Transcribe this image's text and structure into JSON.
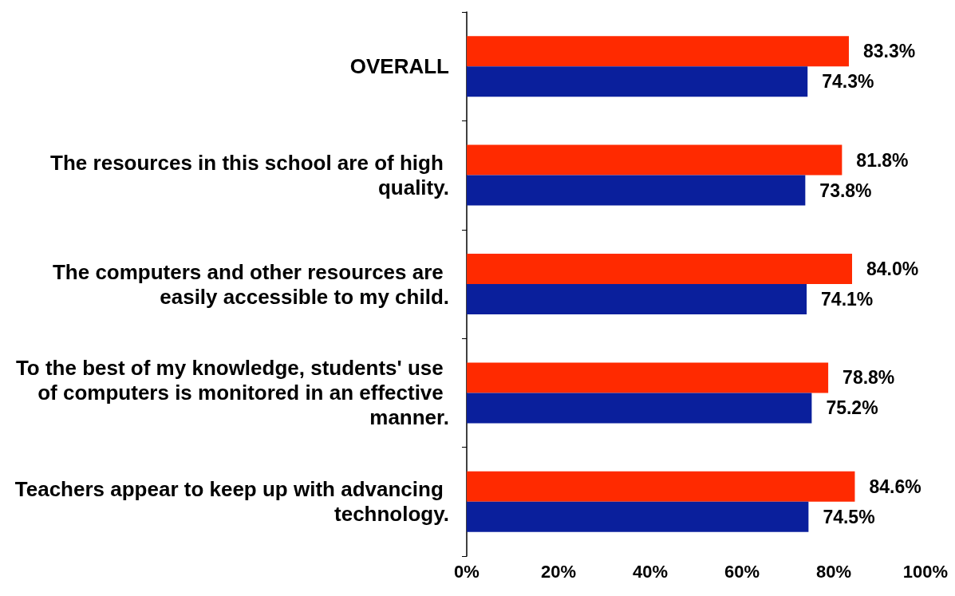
{
  "chart_data": {
    "type": "bar",
    "orientation": "horizontal",
    "categories": [
      "OVERALL",
      "The resources in this school are of high quality.",
      "The computers and other resources are easily accessible to my child.",
      "To the best of my knowledge, students' use of computers is monitored in an effective manner.",
      "Teachers appear to keep up with advancing technology."
    ],
    "series": [
      {
        "color": "#ff2a00",
        "values": [
          83.3,
          81.8,
          84.0,
          78.8,
          84.6
        ],
        "value_labels": [
          "83.3%",
          "81.8%",
          "84.0%",
          "78.8%",
          "84.6%"
        ]
      },
      {
        "color": "#0a1f9c",
        "values": [
          74.3,
          73.8,
          74.1,
          75.2,
          74.5
        ],
        "value_labels": [
          "74.3%",
          "73.8%",
          "74.1%",
          "75.2%",
          "74.5%"
        ]
      }
    ],
    "xlim": [
      0,
      100
    ],
    "xticks": [
      {
        "value": 0,
        "label": "0%"
      },
      {
        "value": 20,
        "label": "20%"
      },
      {
        "value": 40,
        "label": "40%"
      },
      {
        "value": 60,
        "label": "60%"
      },
      {
        "value": 80,
        "label": "80%"
      },
      {
        "value": 100,
        "label": "100%"
      }
    ],
    "grid": false
  }
}
